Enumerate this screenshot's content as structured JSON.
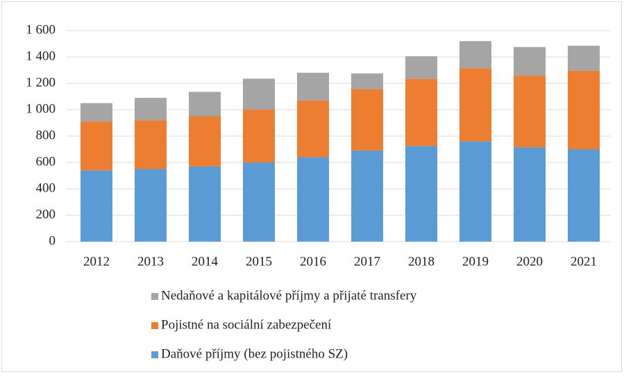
{
  "chart_data": {
    "type": "stacked_bar",
    "categories": [
      "2012",
      "2013",
      "2014",
      "2015",
      "2016",
      "2017",
      "2018",
      "2019",
      "2020",
      "2021"
    ],
    "series": [
      {
        "name": "Daňové příjmy (bez pojistného SZ)",
        "color": "#5b9bd5",
        "values": [
          540,
          550,
          570,
          600,
          640,
          690,
          725,
          760,
          715,
          700
        ]
      },
      {
        "name": "Pojistné na sociální zabezpečení",
        "color": "#ed7d31",
        "values": [
          370,
          370,
          380,
          400,
          430,
          465,
          510,
          555,
          545,
          595
        ]
      },
      {
        "name": "Nedaňové a kapitálové příjmy a přijaté transfery",
        "color": "#a5a5a5",
        "values": [
          140,
          170,
          185,
          235,
          210,
          120,
          170,
          205,
          215,
          190
        ]
      }
    ],
    "ylim": [
      0,
      1600
    ],
    "yticks": [
      0,
      200,
      400,
      600,
      800,
      {
        "value": 1000,
        "label": "1 000"
      },
      {
        "value": 1200,
        "label": "1 200"
      },
      {
        "value": 1400,
        "label": "1 400"
      },
      {
        "value": 1600,
        "label": "1 600"
      }
    ],
    "grid": true
  }
}
